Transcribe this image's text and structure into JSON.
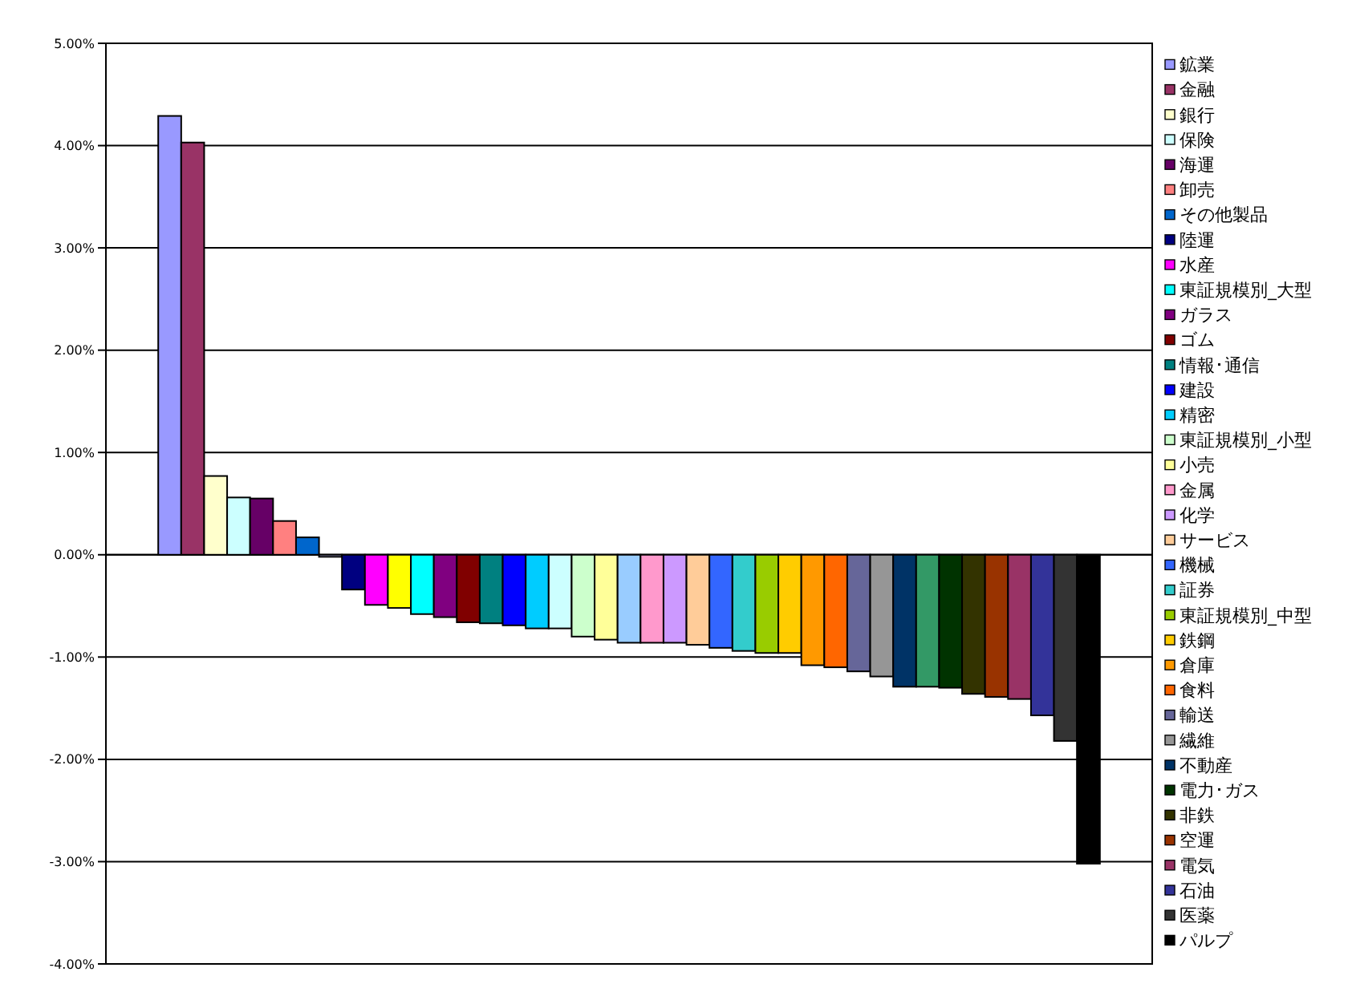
{
  "chart_data": {
    "type": "bar",
    "categories": [
      null
    ],
    "series": [
      {
        "name": "鉱業",
        "color": "#9999ff",
        "values": [
          4.29
        ]
      },
      {
        "name": "金融",
        "color": "#993366",
        "values": [
          4.03
        ]
      },
      {
        "name": "銀行",
        "color": "#ffffcc",
        "values": [
          0.77
        ]
      },
      {
        "name": "保険",
        "color": "#ccffff",
        "values": [
          0.56
        ]
      },
      {
        "name": "海運",
        "color": "#660066",
        "values": [
          0.55
        ]
      },
      {
        "name": "卸売",
        "color": "#ff8080",
        "values": [
          0.33
        ]
      },
      {
        "name": "その他製品",
        "color": "#0066cc",
        "values": [
          0.17
        ]
      },
      {
        "color": "#ccccff",
        "values": [
          -0.02
        ]
      },
      {
        "name": "陸運",
        "color": "#000080",
        "values": [
          -0.34
        ]
      },
      {
        "name": "水産",
        "color": "#ff00ff",
        "values": [
          -0.49
        ]
      },
      {
        "color": "#ffff00",
        "values": [
          -0.52
        ]
      },
      {
        "name": "東証規模別_大型",
        "color": "#00ffff",
        "values": [
          -0.58
        ]
      },
      {
        "name": "ガラス",
        "color": "#800080",
        "values": [
          -0.61
        ]
      },
      {
        "name": "ゴム",
        "color": "#800000",
        "values": [
          -0.66
        ]
      },
      {
        "name": "情報･通信",
        "color": "#008080",
        "values": [
          -0.67
        ]
      },
      {
        "name": "建設",
        "color": "#0000ff",
        "values": [
          -0.69
        ]
      },
      {
        "name": "精密",
        "color": "#00ccff",
        "values": [
          -0.72
        ]
      },
      {
        "color": "#ccffff",
        "values": [
          -0.72
        ]
      },
      {
        "name": "東証規模別_小型",
        "color": "#ccffcc",
        "values": [
          -0.8
        ]
      },
      {
        "name": "小売",
        "color": "#ffff99",
        "values": [
          -0.83
        ]
      },
      {
        "color": "#99ccff",
        "values": [
          -0.86
        ]
      },
      {
        "name": "金属",
        "color": "#ff99cc",
        "values": [
          -0.86
        ]
      },
      {
        "name": "化学",
        "color": "#cc99ff",
        "values": [
          -0.86
        ]
      },
      {
        "name": "サービス",
        "color": "#ffcc99",
        "values": [
          -0.88
        ]
      },
      {
        "name": "機械",
        "color": "#3366ff",
        "values": [
          -0.91
        ]
      },
      {
        "name": "証券",
        "color": "#33cccc",
        "values": [
          -0.94
        ]
      },
      {
        "name": "東証規模別_中型",
        "color": "#99cc00",
        "values": [
          -0.96
        ]
      },
      {
        "name": "鉄鋼",
        "color": "#ffcc00",
        "values": [
          -0.96
        ]
      },
      {
        "name": "倉庫",
        "color": "#ff9900",
        "values": [
          -1.08
        ]
      },
      {
        "name": "食料",
        "color": "#ff6600",
        "values": [
          -1.1
        ]
      },
      {
        "name": "輸送",
        "color": "#666699",
        "values": [
          -1.14
        ]
      },
      {
        "name": "繊維",
        "color": "#969696",
        "values": [
          -1.19
        ]
      },
      {
        "name": "不動産",
        "color": "#003366",
        "values": [
          -1.29
        ]
      },
      {
        "color": "#339966",
        "values": [
          -1.29
        ]
      },
      {
        "name": "電力･ガス",
        "color": "#003300",
        "values": [
          -1.3
        ]
      },
      {
        "name": "非鉄",
        "color": "#333300",
        "values": [
          -1.36
        ]
      },
      {
        "name": "空運",
        "color": "#993300",
        "values": [
          -1.39
        ]
      },
      {
        "name": "電気",
        "color": "#993366",
        "values": [
          -1.41
        ]
      },
      {
        "name": "石油",
        "color": "#333399",
        "values": [
          -1.57
        ]
      },
      {
        "name": "医薬",
        "color": "#333333",
        "values": [
          -1.82
        ]
      },
      {
        "name": "パルプ",
        "color": "#000000",
        "values": [
          -3.02
        ]
      }
    ],
    "ylim": [
      -4,
      5
    ],
    "yticks": [
      {
        "value": -4,
        "label": "-4.00%"
      },
      {
        "value": -3,
        "label": "-3.00%"
      },
      {
        "value": -2,
        "label": "-2.00%"
      },
      {
        "value": -1,
        "label": "-1.00%"
      },
      {
        "value": 0,
        "label": "0.00%"
      },
      {
        "value": 1,
        "label": "1.00%"
      },
      {
        "value": 2,
        "label": "2.00%"
      },
      {
        "value": 3,
        "label": "3.00%"
      },
      {
        "value": 4,
        "label": "4.00%"
      },
      {
        "value": 5,
        "label": "5.00%"
      }
    ],
    "grid": "y",
    "legend": "right"
  }
}
